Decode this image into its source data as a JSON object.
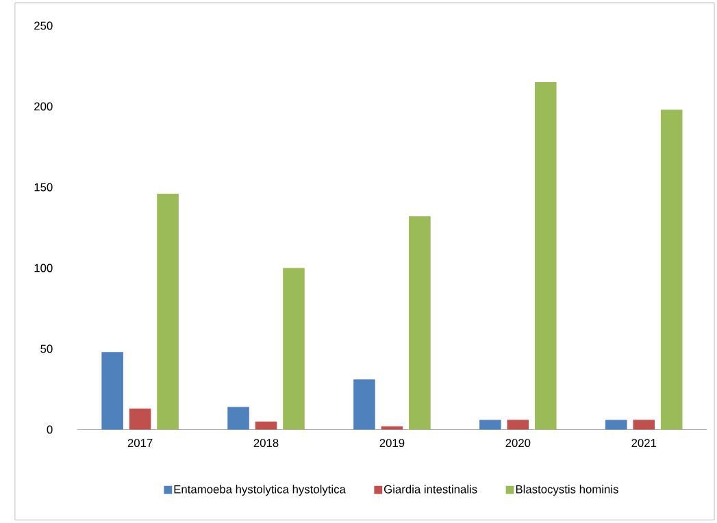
{
  "chart_data": {
    "type": "bar",
    "categories": [
      "2017",
      "2018",
      "2019",
      "2020",
      "2021"
    ],
    "series": [
      {
        "name": "Entamoeba hystolytica hystolytica",
        "color": "#4f81bd",
        "values": [
          48,
          14,
          31,
          6,
          6
        ]
      },
      {
        "name": "Giardia intestinalis",
        "color": "#c0504d",
        "values": [
          13,
          5,
          2,
          6,
          6
        ]
      },
      {
        "name": "Blastocystis hominis",
        "color": "#9bbb59",
        "values": [
          146,
          100,
          132,
          215,
          198
        ]
      }
    ],
    "ylim": [
      0,
      250
    ],
    "yticks": [
      0,
      50,
      100,
      150,
      200,
      250
    ],
    "grid": false,
    "legend": "bottom"
  }
}
